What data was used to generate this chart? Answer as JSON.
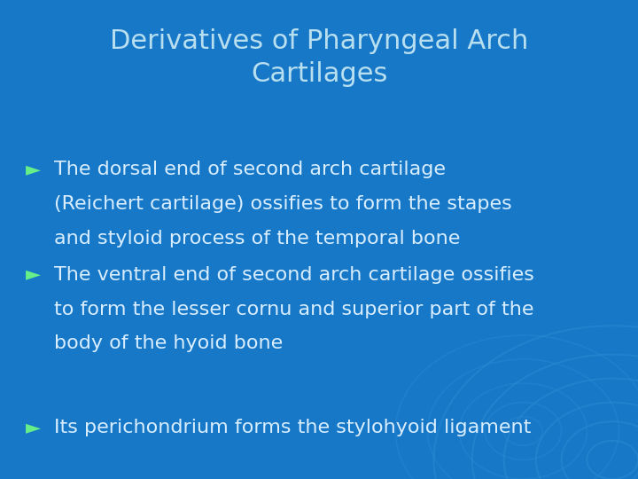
{
  "title_line1": "Derivatives of Pharyngeal Arch",
  "title_line2": "Cartilages",
  "title_color": "#B8DFF0",
  "title_fontsize": 22,
  "background_color": "#1878C8",
  "bullet_color": "#66EE88",
  "text_color": "#D8EEFF",
  "bullet_symbol": "►",
  "bullet_fontsize": 16,
  "title_fontweight": "normal",
  "bullets": [
    [
      "The dorsal end of second arch cartilage",
      "(Reichert cartilage) ossifies to form the stapes",
      "and styloid process of the temporal bone"
    ],
    [
      "The ventral end of second arch cartilage ossifies",
      "to form the lesser cornu and superior part of the",
      "body of the hyoid bone"
    ],
    [
      "Its perichondrium forms the stylohyoid ligament"
    ]
  ],
  "figsize": [
    7.2,
    5.4
  ],
  "dpi": 100
}
